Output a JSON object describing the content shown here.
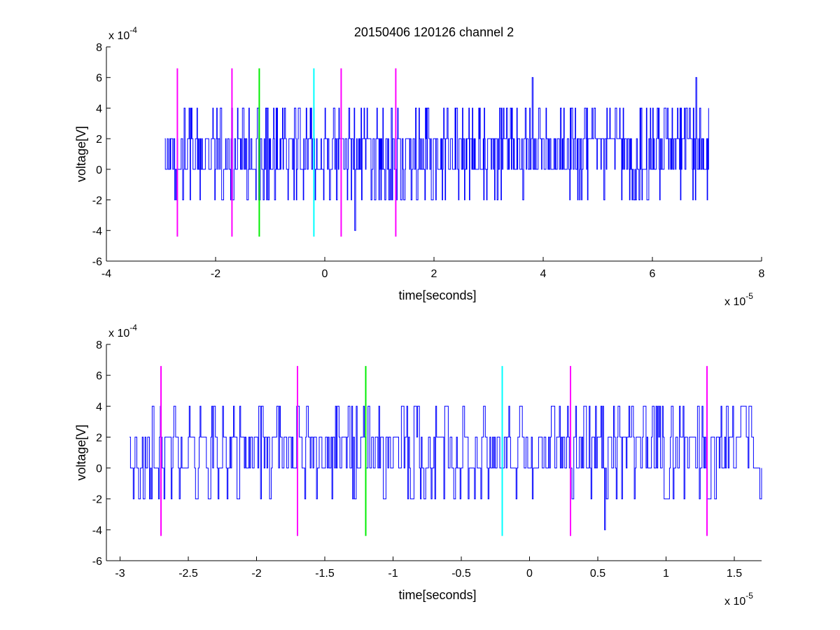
{
  "figure": {
    "title": "20150406 120126 channel 2",
    "colors": {
      "signal": "#0000ff",
      "marker_magenta": "#ff00ff",
      "marker_green": "#00ee00",
      "marker_cyan": "#00ffff",
      "axes": "#000000",
      "background": "#ffffff"
    }
  },
  "chart_data": [
    {
      "type": "line",
      "title": "20150406 120126 channel 2",
      "xlabel": "time[seconds]",
      "ylabel": "voltage[V]",
      "x_multiplier": {
        "base": "x 10",
        "exponent": "-5"
      },
      "y_multiplier": {
        "base": "x 10",
        "exponent": "-4"
      },
      "xlim": [
        -4,
        8
      ],
      "ylim": [
        -6,
        8
      ],
      "x_ticks": [
        -4,
        -2,
        0,
        2,
        4,
        6,
        8
      ],
      "x_tick_labels": [
        "-4",
        "-2",
        "0",
        "2",
        "4",
        "6",
        "8"
      ],
      "y_ticks": [
        -6,
        -4,
        -2,
        0,
        2,
        4,
        6,
        8
      ],
      "y_tick_labels": [
        "-6",
        "-4",
        "-2",
        "0",
        "2",
        "4",
        "6",
        "8"
      ],
      "grid": false,
      "signal": {
        "x_range": [
          -2.93,
          7.03
        ],
        "levels": [
          -4,
          -2,
          0,
          2,
          4,
          6
        ],
        "baseline": 2,
        "peaks": [
          {
            "x": 3.8,
            "y": 6
          },
          {
            "x": 6.8,
            "y": 6
          }
        ],
        "troughs": [
          {
            "x": 0.55,
            "y": -4
          }
        ]
      },
      "markers": [
        {
          "x": -2.7,
          "y_range": [
            -4.4,
            6.6
          ],
          "color": "magenta"
        },
        {
          "x": -1.7,
          "y_range": [
            -4.4,
            6.6
          ],
          "color": "magenta"
        },
        {
          "x": -1.2,
          "y_range": [
            -4.4,
            6.6
          ],
          "color": "green"
        },
        {
          "x": -0.2,
          "y_range": [
            -4.4,
            6.6
          ],
          "color": "cyan"
        },
        {
          "x": 0.3,
          "y_range": [
            -4.4,
            6.6
          ],
          "color": "magenta"
        },
        {
          "x": 1.3,
          "y_range": [
            -4.4,
            6.6
          ],
          "color": "magenta"
        }
      ]
    },
    {
      "type": "line",
      "title": "",
      "xlabel": "time[seconds]",
      "ylabel": "voltage[V]",
      "x_multiplier": {
        "base": "x 10",
        "exponent": "-5"
      },
      "y_multiplier": {
        "base": "x 10",
        "exponent": "-4"
      },
      "xlim": [
        -3.1,
        1.7
      ],
      "ylim": [
        -6,
        8
      ],
      "x_ticks": [
        -3,
        -2.5,
        -2,
        -1.5,
        -1,
        -0.5,
        0,
        0.5,
        1,
        1.5
      ],
      "x_tick_labels": [
        "-3",
        "-2.5",
        "-2",
        "-1.5",
        "-1",
        "-0.5",
        "0",
        "0.5",
        "1",
        "1.5"
      ],
      "y_ticks": [
        -6,
        -4,
        -2,
        0,
        2,
        4,
        6,
        8
      ],
      "y_tick_labels": [
        "-6",
        "-4",
        "-2",
        "0",
        "2",
        "4",
        "6",
        "8"
      ],
      "grid": false,
      "signal": {
        "x_range": [
          -2.93,
          1.7
        ],
        "levels": [
          -4,
          -2,
          0,
          2,
          4
        ],
        "baseline": 2,
        "peaks": [],
        "troughs": [
          {
            "x": 0.55,
            "y": -4
          }
        ]
      },
      "markers": [
        {
          "x": -2.7,
          "y_range": [
            -4.4,
            6.6
          ],
          "color": "magenta"
        },
        {
          "x": -1.7,
          "y_range": [
            -4.4,
            6.6
          ],
          "color": "magenta"
        },
        {
          "x": -1.2,
          "y_range": [
            -4.4,
            6.6
          ],
          "color": "green"
        },
        {
          "x": -0.2,
          "y_range": [
            -4.4,
            6.6
          ],
          "color": "cyan"
        },
        {
          "x": 0.3,
          "y_range": [
            -4.4,
            6.6
          ],
          "color": "magenta"
        },
        {
          "x": 1.3,
          "y_range": [
            -4.4,
            6.6
          ],
          "color": "magenta"
        }
      ]
    }
  ]
}
